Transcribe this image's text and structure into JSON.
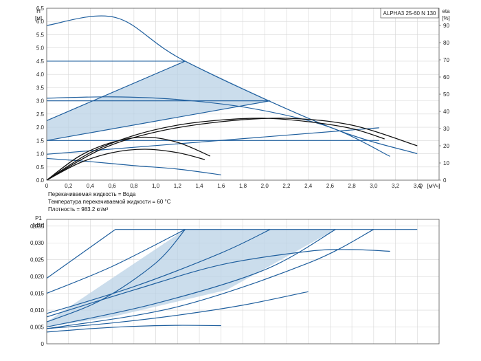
{
  "chart_data": [
    {
      "type": "line",
      "title": "ALPHA3 25-60 N 130",
      "y_label": "H",
      "y_unit": "[м]",
      "y2_label": "eta",
      "y2_unit": "[%]",
      "x_label": "Q",
      "x_unit": "[м³/ч]",
      "xlim": [
        0,
        3.6
      ],
      "ylim": [
        0,
        6.5
      ],
      "y2lim": [
        0,
        100
      ],
      "grid": true,
      "x_ticks": [
        "0",
        "0,2",
        "0,4",
        "0,6",
        "0,8",
        "1,0",
        "1,2",
        "1,4",
        "1,6",
        "1,8",
        "2,0",
        "2,2",
        "2,4",
        "2,6",
        "2,8",
        "3,0",
        "3,2",
        "3,4"
      ],
      "y_ticks": [
        "0.0",
        "0.5",
        "1.0",
        "1.5",
        "2.0",
        "2.5",
        "3.0",
        "3.5",
        "4.0",
        "4.5",
        "5.0",
        "5.5",
        "6.0",
        "6.5"
      ],
      "y2_ticks": [
        "0",
        "10",
        "20",
        "30",
        "40",
        "50",
        "60",
        "70",
        "80",
        "90"
      ],
      "fluid_info": [
        "Перекачиваемая жидкость = Вода",
        "Температура перекачиваемой жидкости = 60 °C",
        "Плотность = 983.2 кг/м³"
      ],
      "shaded_region": {
        "x": [
          0,
          1.27,
          2.05,
          0,
          0
        ],
        "y": [
          2.25,
          4.5,
          3.0,
          1.5,
          2.25
        ]
      },
      "series": [
        {
          "role": "max-curve",
          "x": [
            0,
            0.63,
            1.27,
            2.6,
            3.4
          ],
          "y": [
            5.85,
            6.15,
            4.5,
            2.0,
            1.0
          ]
        },
        {
          "role": "const-line",
          "x": [
            0,
            1.27
          ],
          "y": [
            4.5,
            4.5
          ]
        },
        {
          "role": "const-line",
          "x": [
            0,
            2.05
          ],
          "y": [
            3.0,
            3.0
          ]
        },
        {
          "role": "const-line",
          "x": [
            0,
            3.05
          ],
          "y": [
            1.5,
            1.5
          ]
        },
        {
          "role": "prop-line",
          "x": [
            0,
            1.27
          ],
          "y": [
            2.25,
            4.5
          ]
        },
        {
          "role": "prop-line",
          "x": [
            0,
            2.05
          ],
          "y": [
            1.5,
            3.0
          ]
        },
        {
          "role": "prop-line",
          "x": [
            0,
            3.05
          ],
          "y": [
            0.98,
            1.98
          ]
        },
        {
          "role": "curve",
          "x": [
            0,
            0.6,
            1.2,
            1.9,
            2.6,
            3.15
          ],
          "y": [
            3.1,
            3.15,
            3.05,
            2.7,
            2.0,
            0.9
          ]
        },
        {
          "role": "curve",
          "x": [
            0,
            0.4,
            0.8,
            1.2,
            1.6
          ],
          "y": [
            0.82,
            0.7,
            0.55,
            0.42,
            0.2
          ]
        },
        {
          "role": "eta",
          "x": [
            0,
            0.5,
            1.0,
            1.6,
            2.2,
            2.8,
            3.4
          ],
          "y": [
            0,
            18,
            28,
            34,
            36,
            32,
            20
          ]
        },
        {
          "role": "eta",
          "x": [
            0,
            0.4,
            0.8,
            1.2,
            1.6,
            2.0,
            2.4,
            2.8,
            3.1
          ],
          "y": [
            0,
            16,
            26,
            32,
            35,
            36,
            34,
            30,
            24
          ]
        },
        {
          "role": "eta",
          "x": [
            0,
            0.3,
            0.6,
            0.9,
            1.2,
            1.5
          ],
          "y": [
            0,
            14,
            22,
            25,
            22,
            14
          ]
        },
        {
          "role": "eta",
          "x": [
            0,
            0.3,
            0.6,
            0.9,
            1.2,
            1.45
          ],
          "y": [
            0,
            10,
            16,
            18,
            16,
            12
          ]
        }
      ]
    },
    {
      "type": "line",
      "y_label": "P1",
      "y_unit": "[кВт]",
      "xlim": [
        0,
        3.6
      ],
      "ylim": [
        0,
        0.037
      ],
      "grid": true,
      "y_ticks": [
        "0",
        "0,005",
        "0,010",
        "0,015",
        "0,020",
        "0,025",
        "0,030",
        "0,035"
      ],
      "shaded_region": {
        "x": [
          0,
          1.27,
          2.05,
          2.65,
          1.65,
          0.6,
          0
        ],
        "y": [
          0.0065,
          0.034,
          0.034,
          0.034,
          0.016,
          0.008,
          0.005
        ]
      },
      "series": [
        {
          "role": "max-line",
          "x": [
            0.63,
            3.4
          ],
          "y": [
            0.034,
            0.034
          ]
        },
        {
          "role": "curve",
          "x": [
            0,
            0.63
          ],
          "y": [
            0.0195,
            0.034
          ]
        },
        {
          "role": "curve",
          "x": [
            0,
            0.6,
            1.27
          ],
          "y": [
            0.015,
            0.023,
            0.034
          ]
        },
        {
          "role": "curve",
          "x": [
            0,
            0.5,
            1.0,
            1.27
          ],
          "y": [
            0.0065,
            0.013,
            0.024,
            0.034
          ]
        },
        {
          "role": "curve",
          "x": [
            0,
            0.8,
            1.6,
            2.05
          ],
          "y": [
            0.009,
            0.017,
            0.027,
            0.034
          ]
        },
        {
          "role": "curve",
          "x": [
            0,
            1.0,
            2.0,
            2.65
          ],
          "y": [
            0.005,
            0.012,
            0.022,
            0.034
          ]
        },
        {
          "role": "curve",
          "x": [
            0,
            1.2,
            2.4,
            3.0
          ],
          "y": [
            0.0045,
            0.011,
            0.024,
            0.034
          ]
        },
        {
          "role": "curve",
          "x": [
            0,
            0.8,
            1.6,
            2.4,
            2.8,
            3.15
          ],
          "y": [
            0.008,
            0.016,
            0.0235,
            0.0275,
            0.028,
            0.0275
          ]
        },
        {
          "role": "curve",
          "x": [
            0,
            0.4,
            0.8,
            1.2,
            1.6
          ],
          "y": [
            0.0035,
            0.0045,
            0.0052,
            0.0055,
            0.0054
          ]
        },
        {
          "role": "curve",
          "x": [
            0,
            0.6,
            1.2,
            1.8,
            2.4
          ],
          "y": [
            0.0045,
            0.0062,
            0.0085,
            0.0115,
            0.0155
          ]
        }
      ]
    }
  ]
}
